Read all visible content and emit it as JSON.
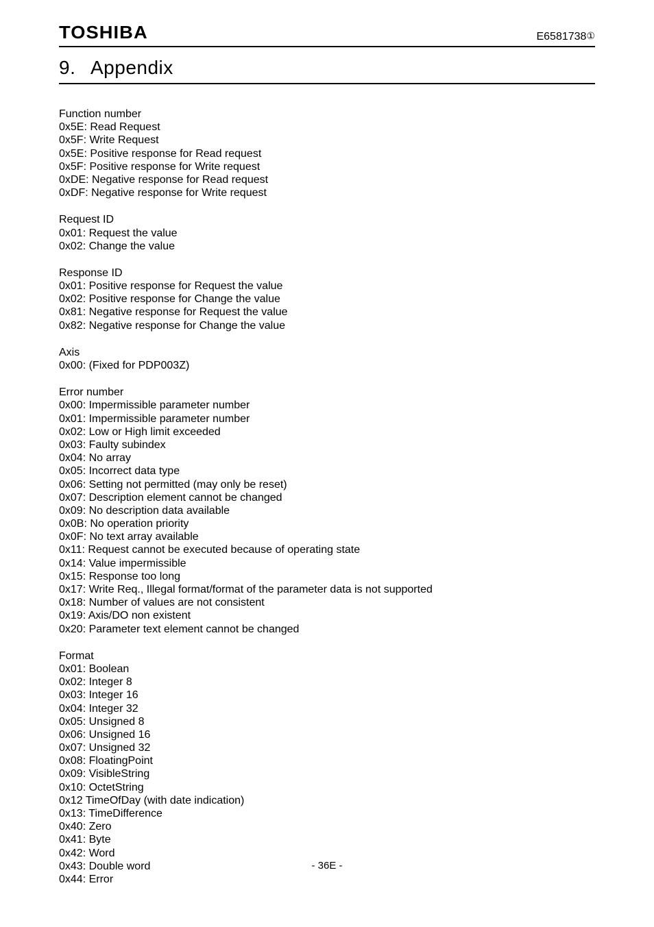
{
  "header": {
    "brand": "TOSHIBA",
    "docnum": "E6581738",
    "docnum_suffix": "①"
  },
  "chapter": {
    "number": "9.",
    "title": "Appendix"
  },
  "sections": [
    {
      "title": "Function number",
      "lines": [
        "0x5E: Read Request",
        "0x5F: Write Request",
        "0x5E: Positive response for Read request",
        "0x5F: Positive response for Write request",
        "0xDE: Negative response for Read request",
        "0xDF: Negative response for Write request"
      ]
    },
    {
      "title": "Request ID",
      "lines": [
        "0x01: Request the value",
        "0x02: Change the value"
      ]
    },
    {
      "title": "Response ID",
      "lines": [
        "0x01: Positive response for Request the value",
        "0x02: Positive response for Change the value",
        "0x81: Negative response for Request the value",
        "0x82: Negative response for Change the value"
      ]
    },
    {
      "title": "Axis",
      "lines": [
        "0x00: (Fixed for PDP003Z)"
      ]
    },
    {
      "title": "Error number",
      "lines": [
        "0x00: Impermissible parameter number",
        "0x01: Impermissible parameter number",
        "0x02: Low or High limit exceeded",
        "0x03: Faulty subindex",
        "0x04: No array",
        "0x05: Incorrect data type",
        "0x06: Setting not permitted (may only be reset)",
        "0x07: Description element cannot be changed",
        "0x09: No description data available",
        "0x0B: No operation priority",
        "0x0F: No text array available",
        "0x11: Request cannot be executed because of operating state",
        "0x14: Value impermissible",
        "0x15: Response too long",
        "0x17: Write Req., Illegal format/format of the parameter data is not supported",
        "0x18: Number of values are not consistent",
        "0x19: Axis/DO non existent",
        "0x20: Parameter text element cannot be changed"
      ]
    },
    {
      "title": "Format",
      "lines": [
        "0x01: Boolean",
        "0x02: Integer 8",
        "0x03: Integer 16",
        "0x04: Integer 32",
        "0x05: Unsigned 8",
        "0x06: Unsigned 16",
        "0x07: Unsigned 32",
        "0x08: FloatingPoint",
        "0x09: VisibleString",
        "0x10: OctetString",
        "0x12 TimeOfDay (with date indication)",
        "0x13: TimeDifference",
        "0x40: Zero",
        "0x41: Byte",
        "0x42: Word",
        "0x43: Double word",
        "0x44: Error"
      ]
    }
  ],
  "footer": {
    "page": "- 36E -"
  }
}
